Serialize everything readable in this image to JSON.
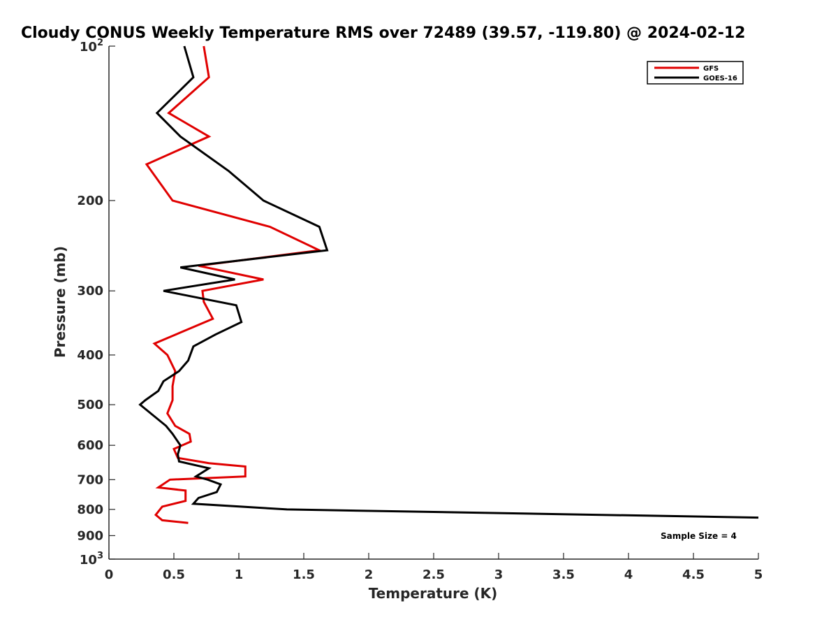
{
  "chart_data": {
    "type": "line",
    "title": "Cloudy CONUS Weekly Temperature RMS over 72489 (39.57, -119.80) @ 2024-02-12",
    "xlabel": "Temperature (K)",
    "ylabel": "Pressure (mb)",
    "xlim": [
      0,
      5
    ],
    "ylim": [
      100,
      1000
    ],
    "y_scale": "log",
    "y_reversed": true,
    "grid": false,
    "legend_position": "top-right",
    "x_ticks": [
      0,
      0.5,
      1,
      1.5,
      2,
      2.5,
      3,
      3.5,
      4,
      4.5,
      5
    ],
    "x_tick_labels": [
      "0",
      "0.5",
      "1",
      "1.5",
      "2",
      "2.5",
      "3",
      "3.5",
      "4",
      "4.5",
      "5"
    ],
    "y_ticks": [
      200,
      300,
      400,
      500,
      600,
      700,
      800,
      900
    ],
    "y_tick_labels": [
      "200",
      "300",
      "400",
      "500",
      "600",
      "700",
      "800",
      "900"
    ],
    "y_tick_top": {
      "value": 100,
      "base": "10",
      "exp": "2"
    },
    "y_tick_bottom": {
      "value": 1000,
      "base": "10",
      "exp": "3"
    },
    "annotation": "Sample Size = 4",
    "series": [
      {
        "name": "GFS",
        "color": "#e00000",
        "points": [
          [
            0.73,
            100
          ],
          [
            0.77,
            115
          ],
          [
            0.46,
            135
          ],
          [
            0.77,
            150
          ],
          [
            0.29,
            170
          ],
          [
            0.49,
            200
          ],
          [
            1.24,
            225
          ],
          [
            1.62,
            250
          ],
          [
            0.69,
            268
          ],
          [
            1.19,
            285
          ],
          [
            0.72,
            300
          ],
          [
            0.73,
            315
          ],
          [
            0.8,
            340
          ],
          [
            0.35,
            380
          ],
          [
            0.45,
            400
          ],
          [
            0.51,
            430
          ],
          [
            0.49,
            460
          ],
          [
            0.49,
            490
          ],
          [
            0.45,
            520
          ],
          [
            0.51,
            550
          ],
          [
            0.62,
            570
          ],
          [
            0.63,
            590
          ],
          [
            0.5,
            610
          ],
          [
            0.53,
            635
          ],
          [
            0.77,
            650
          ],
          [
            1.05,
            660
          ],
          [
            1.05,
            690
          ],
          [
            0.47,
            700
          ],
          [
            0.38,
            725
          ],
          [
            0.59,
            735
          ],
          [
            0.59,
            770
          ],
          [
            0.41,
            790
          ],
          [
            0.36,
            820
          ],
          [
            0.41,
            840
          ],
          [
            0.61,
            850
          ]
        ]
      },
      {
        "name": "GOES-16",
        "color": "#000000",
        "points": [
          [
            0.58,
            100
          ],
          [
            0.65,
            115
          ],
          [
            0.37,
            135
          ],
          [
            0.55,
            150
          ],
          [
            0.92,
            175
          ],
          [
            1.19,
            200
          ],
          [
            1.62,
            225
          ],
          [
            1.68,
            250
          ],
          [
            0.55,
            270
          ],
          [
            0.97,
            285
          ],
          [
            0.42,
            300
          ],
          [
            0.98,
            320
          ],
          [
            1.02,
            345
          ],
          [
            0.82,
            365
          ],
          [
            0.65,
            385
          ],
          [
            0.61,
            410
          ],
          [
            0.54,
            430
          ],
          [
            0.42,
            450
          ],
          [
            0.38,
            470
          ],
          [
            0.28,
            490
          ],
          [
            0.24,
            500
          ],
          [
            0.44,
            550
          ],
          [
            0.49,
            570
          ],
          [
            0.55,
            600
          ],
          [
            0.53,
            625
          ],
          [
            0.54,
            645
          ],
          [
            0.77,
            665
          ],
          [
            0.67,
            690
          ],
          [
            0.76,
            700
          ],
          [
            0.86,
            715
          ],
          [
            0.83,
            740
          ],
          [
            0.69,
            760
          ],
          [
            0.65,
            780
          ],
          [
            1.37,
            800
          ],
          [
            5.0,
            830
          ]
        ]
      }
    ]
  }
}
